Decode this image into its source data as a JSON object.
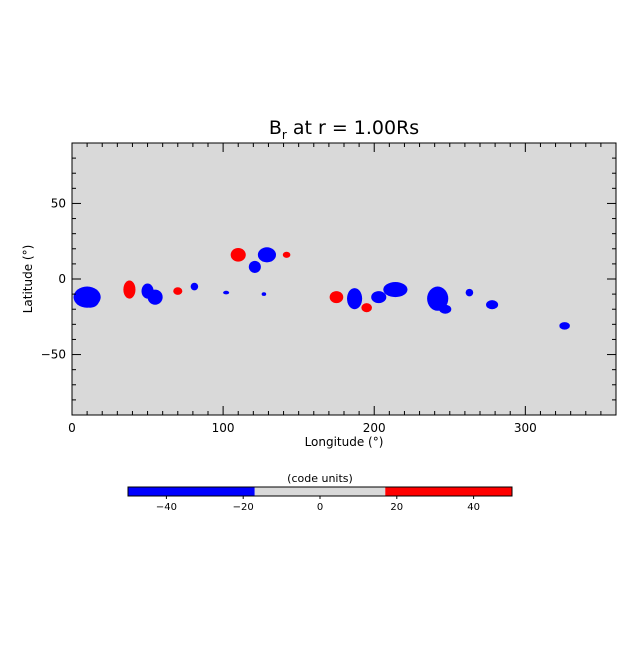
{
  "chart_data": {
    "type": "heatmap",
    "title": {
      "quantity": "B",
      "subscript": "r",
      "rest": " at r = 1.00Rs"
    },
    "xlabel": "Longitude (°)",
    "ylabel": "Latitude (°)",
    "xlim": [
      0,
      360
    ],
    "ylim": [
      -90,
      90
    ],
    "xticks": [
      0,
      100,
      200,
      300
    ],
    "xtick_labels": [
      "0",
      "100",
      "200",
      "300"
    ],
    "yticks": [
      -50,
      0,
      50
    ],
    "ytick_labels": [
      "−50",
      "0",
      "50"
    ],
    "background_color": "#d9d9d9",
    "colorbar": {
      "label": "(code units)",
      "range": [
        -50,
        50
      ],
      "ticks": [
        -40,
        -20,
        0,
        20,
        40
      ],
      "tick_labels": [
        "−40",
        "−20",
        "0",
        "20",
        "40"
      ],
      "segments": [
        {
          "from": -50,
          "to": -17,
          "color": "#0000ff"
        },
        {
          "from": -17,
          "to": 17,
          "color": "#d9d9d9"
        },
        {
          "from": 17,
          "to": 50,
          "color": "#ff0000"
        }
      ]
    },
    "regions": [
      {
        "sign": "negative",
        "lon": 10,
        "lat": -12,
        "rlon": 9,
        "rlat": 7
      },
      {
        "sign": "negative",
        "lon": 12,
        "lat": -14,
        "rlon": 6,
        "rlat": 5
      },
      {
        "sign": "positive",
        "lon": 38,
        "lat": -7,
        "rlon": 4,
        "rlat": 6
      },
      {
        "sign": "negative",
        "lon": 50,
        "lat": -8,
        "rlon": 4,
        "rlat": 5
      },
      {
        "sign": "negative",
        "lon": 55,
        "lat": -12,
        "rlon": 5,
        "rlat": 5
      },
      {
        "sign": "positive",
        "lon": 70,
        "lat": -8,
        "rlon": 3,
        "rlat": 2.5
      },
      {
        "sign": "negative",
        "lon": 81,
        "lat": -5,
        "rlon": 2.5,
        "rlat": 2.5
      },
      {
        "sign": "negative",
        "lon": 102,
        "lat": -9,
        "rlon": 2,
        "rlat": 1.2
      },
      {
        "sign": "positive",
        "lon": 110,
        "lat": 16,
        "rlon": 5,
        "rlat": 4.5
      },
      {
        "sign": "negative",
        "lon": 129,
        "lat": 16,
        "rlon": 6,
        "rlat": 5
      },
      {
        "sign": "negative",
        "lon": 121,
        "lat": 8,
        "rlon": 4,
        "rlat": 4
      },
      {
        "sign": "positive",
        "lon": 142,
        "lat": 16,
        "rlon": 2.5,
        "rlat": 2
      },
      {
        "sign": "negative",
        "lon": 127,
        "lat": -10,
        "rlon": 1.5,
        "rlat": 1.2
      },
      {
        "sign": "positive",
        "lon": 175,
        "lat": -12,
        "rlon": 4.5,
        "rlat": 4
      },
      {
        "sign": "negative",
        "lon": 187,
        "lat": -13,
        "rlon": 5,
        "rlat": 7
      },
      {
        "sign": "positive",
        "lon": 195,
        "lat": -19,
        "rlon": 3.5,
        "rlat": 3
      },
      {
        "sign": "negative",
        "lon": 203,
        "lat": -12,
        "rlon": 5,
        "rlat": 4
      },
      {
        "sign": "negative",
        "lon": 214,
        "lat": -7,
        "rlon": 8,
        "rlat": 5
      },
      {
        "sign": "negative",
        "lon": 242,
        "lat": -13,
        "rlon": 7,
        "rlat": 8
      },
      {
        "sign": "negative",
        "lon": 247,
        "lat": -20,
        "rlon": 4,
        "rlat": 3
      },
      {
        "sign": "negative",
        "lon": 263,
        "lat": -9,
        "rlon": 2.5,
        "rlat": 2.5
      },
      {
        "sign": "negative",
        "lon": 278,
        "lat": -17,
        "rlon": 4,
        "rlat": 3
      },
      {
        "sign": "negative",
        "lon": 326,
        "lat": -31,
        "rlon": 3.5,
        "rlat": 2.5
      }
    ]
  }
}
